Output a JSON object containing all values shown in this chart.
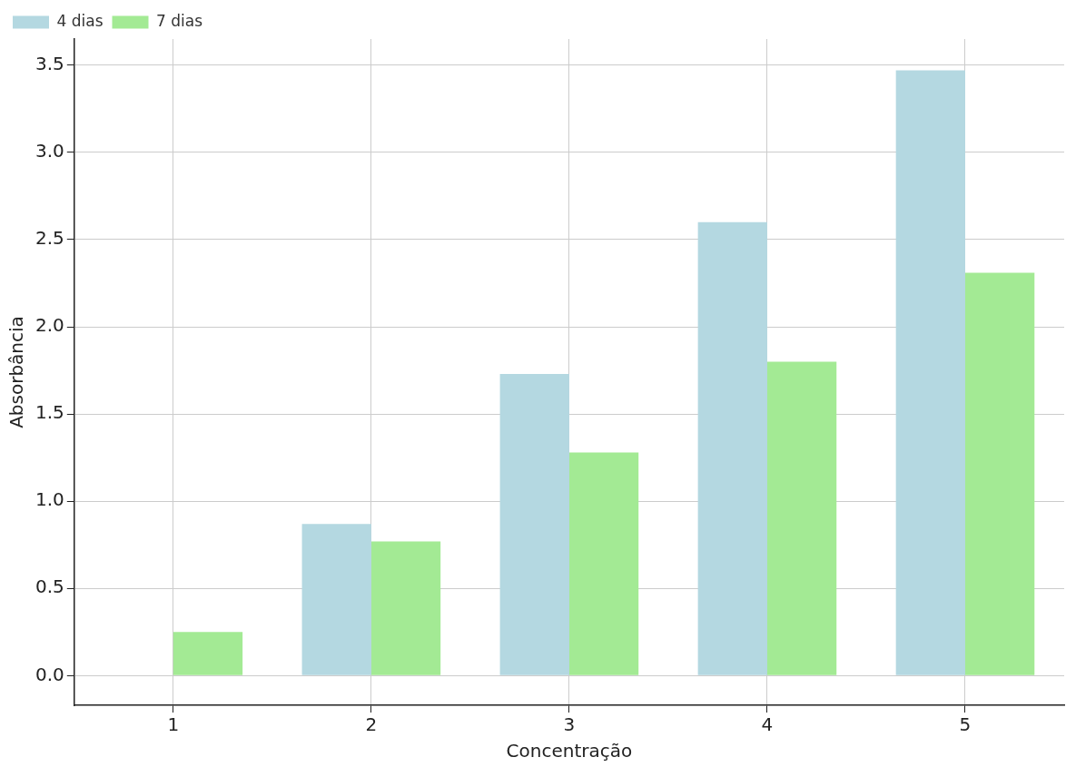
{
  "chart_data": {
    "type": "bar",
    "xlabel": "Concentração",
    "ylabel": "Absorbância",
    "categories": [
      "1",
      "2",
      "3",
      "4",
      "5"
    ],
    "series": [
      {
        "name": "4 dias",
        "color": "#b4d8e1",
        "values": [
          0,
          0.87,
          1.73,
          2.6,
          3.47
        ]
      },
      {
        "name": "7 dias",
        "color": "#a3ea94",
        "values": [
          0.25,
          0.77,
          1.28,
          1.8,
          2.31
        ]
      }
    ],
    "ylim": [
      -0.17,
      3.65
    ],
    "yticks": [
      {
        "value": 0,
        "label": "0.0"
      },
      {
        "value": 0.5,
        "label": "0.5"
      },
      {
        "value": 1,
        "label": "1.0"
      },
      {
        "value": 1.5,
        "label": "1.5"
      },
      {
        "value": 2,
        "label": "2.0"
      },
      {
        "value": 2.5,
        "label": "2.5"
      },
      {
        "value": 3,
        "label": "3.0"
      },
      {
        "value": 3.5,
        "label": "3.5"
      }
    ],
    "grid": true,
    "legend": "top left"
  }
}
